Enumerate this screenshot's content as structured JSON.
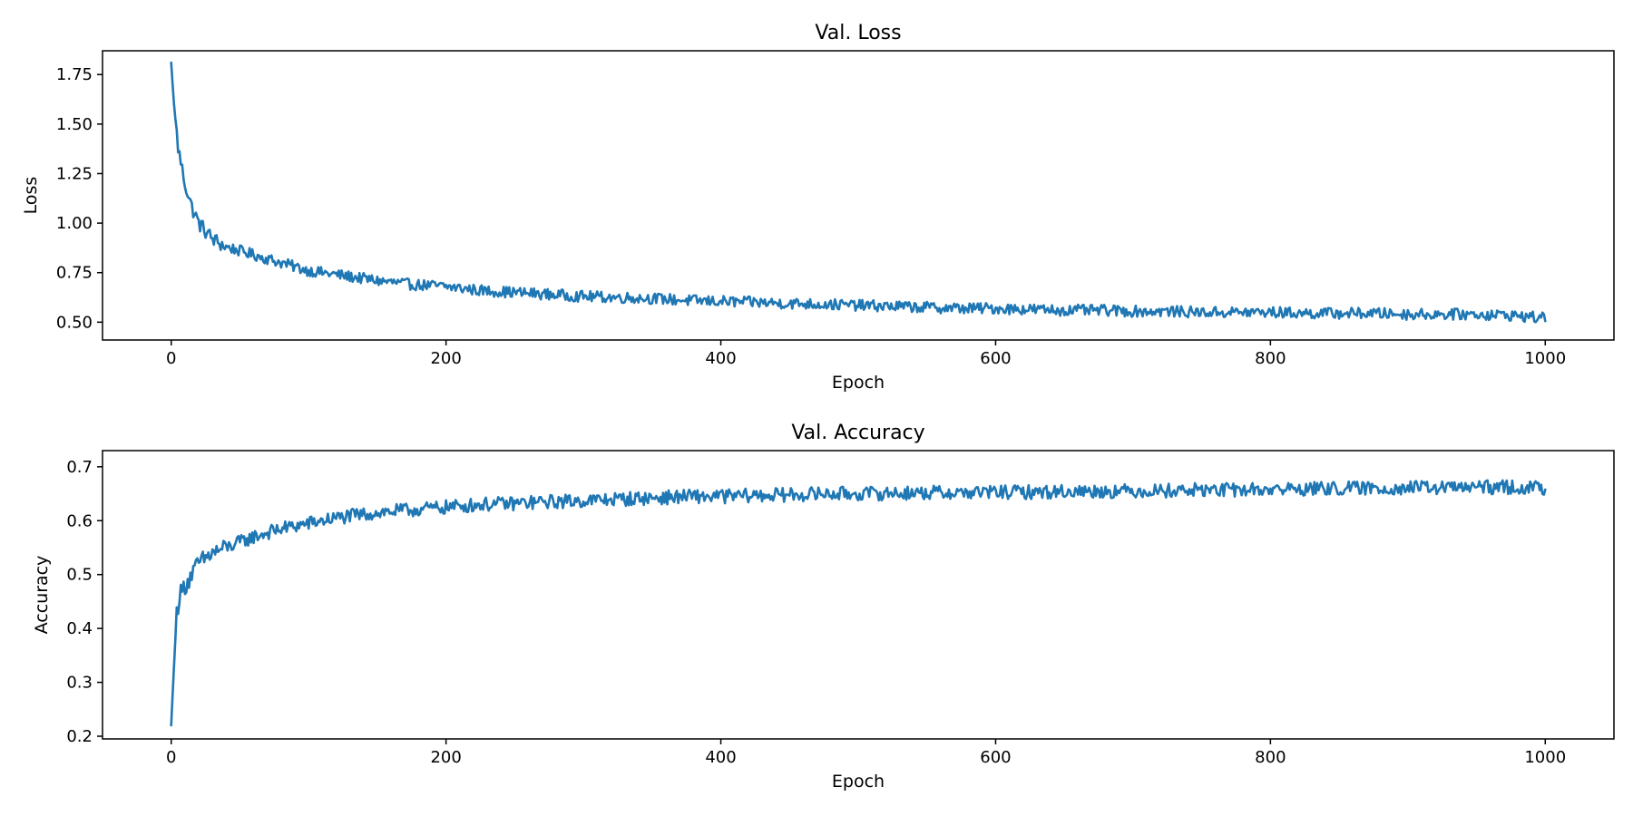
{
  "colors": {
    "series": "#1f77b4",
    "axes": "#000000",
    "background": "#ffffff"
  },
  "chart_data": [
    {
      "type": "line",
      "title": "Val. Loss",
      "xlabel": "Epoch",
      "ylabel": "Loss",
      "xlim": [
        -50,
        1050
      ],
      "ylim": [
        0.41,
        1.87
      ],
      "xticks": [
        0,
        200,
        400,
        600,
        800,
        1000
      ],
      "xtick_labels": [
        "0",
        "200",
        "400",
        "600",
        "800",
        "1000"
      ],
      "yticks": [
        0.5,
        0.75,
        1.0,
        1.25,
        1.5,
        1.75
      ],
      "ytick_labels": [
        "0.50",
        "0.75",
        "1.00",
        "1.25",
        "1.50",
        "1.75"
      ],
      "grid": false,
      "series": [
        {
          "x": [
            0,
            2,
            5,
            10,
            15,
            20,
            25,
            30,
            40,
            50,
            60,
            70,
            80,
            90,
            100,
            120,
            150,
            175,
            200,
            225,
            250,
            275,
            300,
            325,
            350,
            375,
            400,
            425,
            450,
            475,
            500,
            525,
            550,
            575,
            600,
            625,
            650,
            675,
            700,
            725,
            750,
            775,
            800,
            825,
            850,
            875,
            900,
            925,
            950,
            975,
            1000
          ],
          "y": [
            1.81,
            1.6,
            1.38,
            1.2,
            1.08,
            1.0,
            0.96,
            0.92,
            0.88,
            0.86,
            0.84,
            0.82,
            0.8,
            0.78,
            0.76,
            0.74,
            0.71,
            0.69,
            0.68,
            0.66,
            0.65,
            0.64,
            0.63,
            0.625,
            0.62,
            0.61,
            0.605,
            0.6,
            0.595,
            0.59,
            0.585,
            0.58,
            0.575,
            0.57,
            0.57,
            0.565,
            0.56,
            0.56,
            0.555,
            0.555,
            0.55,
            0.55,
            0.55,
            0.545,
            0.545,
            0.545,
            0.54,
            0.54,
            0.54,
            0.535,
            0.52
          ]
        }
      ]
    },
    {
      "type": "line",
      "title": "Val. Accuracy",
      "xlabel": "Epoch",
      "ylabel": "Accuracy",
      "xlim": [
        -50,
        1050
      ],
      "ylim": [
        0.195,
        0.73
      ],
      "xticks": [
        0,
        200,
        400,
        600,
        800,
        1000
      ],
      "xtick_labels": [
        "0",
        "200",
        "400",
        "600",
        "800",
        "1000"
      ],
      "yticks": [
        0.2,
        0.3,
        0.4,
        0.5,
        0.6,
        0.7
      ],
      "ytick_labels": [
        "0.2",
        "0.3",
        "0.4",
        "0.5",
        "0.6",
        "0.7"
      ],
      "grid": false,
      "series": [
        {
          "x": [
            0,
            2,
            4,
            6,
            8,
            10,
            15,
            20,
            30,
            40,
            50,
            60,
            80,
            100,
            120,
            150,
            175,
            200,
            225,
            250,
            275,
            300,
            325,
            350,
            375,
            400,
            425,
            450,
            475,
            500,
            525,
            550,
            575,
            600,
            625,
            650,
            675,
            700,
            725,
            750,
            775,
            800,
            825,
            850,
            875,
            900,
            925,
            950,
            975,
            1000
          ],
          "y": [
            0.22,
            0.33,
            0.43,
            0.46,
            0.47,
            0.48,
            0.5,
            0.52,
            0.54,
            0.55,
            0.56,
            0.57,
            0.585,
            0.595,
            0.605,
            0.615,
            0.62,
            0.625,
            0.63,
            0.632,
            0.635,
            0.637,
            0.64,
            0.642,
            0.645,
            0.645,
            0.647,
            0.648,
            0.65,
            0.65,
            0.651,
            0.652,
            0.652,
            0.653,
            0.653,
            0.654,
            0.655,
            0.655,
            0.656,
            0.657,
            0.657,
            0.658,
            0.659,
            0.66,
            0.66,
            0.661,
            0.661,
            0.662,
            0.662,
            0.66
          ]
        }
      ]
    }
  ]
}
